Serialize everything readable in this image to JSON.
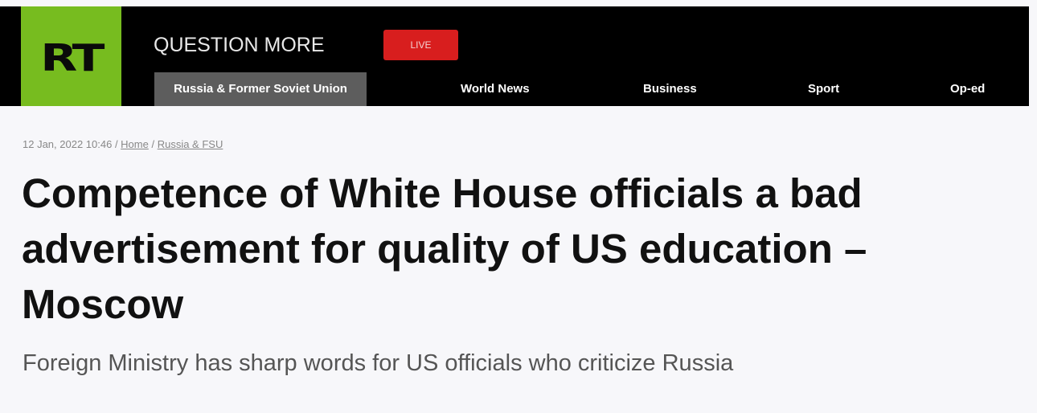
{
  "header": {
    "logo_text": "RT",
    "tagline": "QUESTION MORE",
    "live_label": "LIVE",
    "nav": [
      "Russia & Former Soviet Union",
      "World News",
      "Business",
      "Sport",
      "Op-ed"
    ],
    "active_nav": "Russia & Former Soviet Union"
  },
  "article": {
    "date": "12 Jan, 2022 10:46",
    "breadcrumb": [
      "Home",
      "Russia & FSU"
    ],
    "title": "Competence of White House officials a bad advertisement for quality of US education – Moscow",
    "subtitle": "Foreign Ministry has sharp words for US officials who criticize Russia"
  },
  "colors": {
    "brand_green": "#77bc1f",
    "live_red": "#d81e1e",
    "active_nav_bg": "#5d5d5d"
  }
}
